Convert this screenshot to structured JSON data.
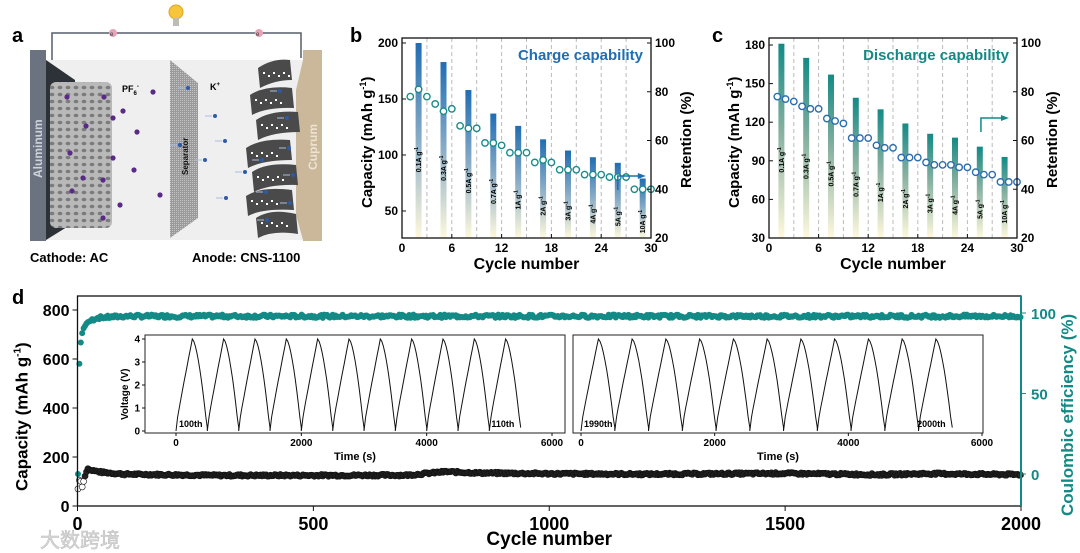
{
  "panel_a": {
    "letter": "a",
    "cathode_label": "Cathode: AC",
    "anode_label": "Anode: CNS-1100",
    "anion_label": "PF",
    "anion_sub": "6",
    "anion_sup": "-",
    "cation_label": "K",
    "cation_sup": "+",
    "separator_label": "Separator",
    "collector_left": "Aluminum",
    "collector_right": "Cuprum",
    "electron_label": "e",
    "colors": {
      "anion": "#5b2a86",
      "cation": "#2e5aa8",
      "aluminum": "#6b7380",
      "cuprum": "#cbb89a"
    }
  },
  "watermark": "大数跨境",
  "chart_data": [
    {
      "panel": "b",
      "type": "bar",
      "title": "Charge capability",
      "xlabel": "Cycle number",
      "ylabel": "Capacity (mAh g",
      "ylabel_sup": "-1",
      "ylabel_end": ")",
      "y2label": "Retention (%)",
      "xlim": [
        0,
        30
      ],
      "ylim": [
        25,
        205
      ],
      "y2lim": [
        20,
        100
      ],
      "xticks": [
        0,
        6,
        12,
        18,
        24,
        30
      ],
      "yticks": [
        50,
        100,
        150,
        200
      ],
      "y2ticks": [
        20,
        40,
        60,
        80,
        100
      ],
      "color": "#1f6db3",
      "bars": {
        "x": [
          2,
          5,
          8,
          11,
          14,
          17,
          20,
          23,
          26,
          29
        ],
        "labels": [
          "0.1A g",
          "0.3A g",
          "0.5A g",
          "0.7A g",
          "1A g",
          "2A g",
          "3A g",
          "4A g",
          "5A g",
          "10A g"
        ],
        "label_sup": "-1",
        "values": [
          200,
          183,
          158,
          137,
          126,
          114,
          104,
          98,
          93,
          79
        ]
      },
      "retention": {
        "x": [
          1,
          2,
          3,
          4,
          5,
          6,
          7,
          8,
          9,
          10,
          11,
          12,
          13,
          14,
          15,
          16,
          17,
          18,
          19,
          20,
          21,
          22,
          23,
          24,
          25,
          26,
          27,
          28,
          29,
          30
        ],
        "values": [
          78,
          81,
          78,
          75,
          72,
          73,
          66,
          65,
          65,
          59,
          59,
          58,
          55,
          55,
          55,
          51,
          52,
          51,
          48,
          48,
          48,
          46,
          46,
          46,
          45,
          45,
          45,
          40,
          40,
          40
        ],
        "color": "#1a8a8a"
      },
      "dividers": [
        3,
        6,
        9,
        12,
        15,
        18,
        21,
        24,
        27
      ]
    },
    {
      "panel": "c",
      "type": "bar",
      "title": "Discharge capability",
      "xlabel": "Cycle number",
      "ylabel": "Capacity (mAh g",
      "ylabel_sup": "-1",
      "ylabel_end": ")",
      "y2label": "Retention (%)",
      "xlim": [
        0,
        30
      ],
      "ylim": [
        30,
        185
      ],
      "y2lim": [
        20,
        100
      ],
      "xticks": [
        0,
        6,
        12,
        18,
        24,
        30
      ],
      "yticks": [
        30,
        60,
        90,
        120,
        150,
        180
      ],
      "y2ticks": [
        20,
        40,
        60,
        80,
        100
      ],
      "color": "#138a86",
      "bars": {
        "x": [
          1.5,
          4.5,
          7.5,
          10.5,
          13.5,
          16.5,
          19.5,
          22.5,
          25.5,
          28.5
        ],
        "labels": [
          "0.1A g",
          "0.3A g",
          "0.5A g",
          "0.7A g",
          "1A g",
          "2A g",
          "3A g",
          "4A g",
          "5A g",
          "10A g"
        ],
        "label_sup": "-1",
        "values": [
          181,
          170,
          157,
          139,
          130,
          119,
          111,
          108,
          101,
          93
        ]
      },
      "retention": {
        "x": [
          1,
          2,
          3,
          4,
          5,
          6,
          7,
          8,
          9,
          10,
          11,
          12,
          13,
          14,
          15,
          16,
          17,
          18,
          19,
          20,
          21,
          22,
          23,
          24,
          25,
          26,
          27,
          28,
          29,
          30
        ],
        "values": [
          78,
          77,
          76,
          74,
          73,
          73,
          69,
          68,
          67,
          61,
          61,
          61,
          58,
          57,
          57,
          53,
          53,
          53,
          51,
          50,
          50,
          50,
          49,
          49,
          47,
          46,
          46,
          43,
          43,
          43
        ],
        "color": "#2a6db0"
      },
      "dividers": [
        3,
        6,
        9,
        12,
        15,
        18,
        21,
        24,
        27
      ]
    },
    {
      "panel": "d",
      "type": "scatter",
      "xlabel": "Cycle number",
      "ylabel": "Capacity (mAh g",
      "ylabel_sup": "-1",
      "ylabel_end": ")",
      "y2label": "Coulombic efficiency (%)",
      "xlim": [
        0,
        2000
      ],
      "ylim": [
        0,
        800
      ],
      "y2lim": [
        -20,
        110
      ],
      "xticks": [
        0,
        500,
        1000,
        1500,
        2000
      ],
      "yticks": [
        0,
        200,
        400,
        600,
        800
      ],
      "y2ticks": [
        0,
        50,
        100
      ],
      "capacity": {
        "x": [
          1,
          3,
          5,
          10,
          20,
          50,
          100,
          300,
          500,
          700,
          780,
          850,
          1000,
          1200,
          1500,
          1700,
          1800,
          2000
        ],
        "values": [
          70,
          90,
          120,
          80,
          150,
          138,
          130,
          125,
          125,
          126,
          140,
          135,
          132,
          130,
          133,
          128,
          132,
          128
        ],
        "color": "#111111"
      },
      "coulombic_efficiency": {
        "x": [
          1,
          2,
          3,
          5,
          8,
          12,
          20,
          40,
          100,
          500,
          1000,
          1500,
          2000
        ],
        "values": [
          0,
          50,
          62,
          75,
          85,
          90,
          94,
          97,
          98,
          98,
          98,
          98,
          98
        ],
        "color": "#138a86"
      },
      "insets": [
        {
          "type": "line",
          "xlabel": "Time (s)",
          "ylabel": "Voltage (V)",
          "xlim": [
            0,
            6000
          ],
          "ylim": [
            0,
            4
          ],
          "xticks": [
            0,
            2000,
            4000,
            6000
          ],
          "yticks": [
            0,
            1,
            2,
            3,
            4
          ],
          "start_label": "100th",
          "end_label": "110th",
          "cycles": 11,
          "period_s": 500,
          "charge_s": 260,
          "v_min": 0,
          "v_max": 4
        },
        {
          "type": "line",
          "xlabel": "Time (s)",
          "xlim": [
            0,
            6000
          ],
          "ylim": [
            0,
            4
          ],
          "xticks": [
            0,
            2000,
            4000,
            6000
          ],
          "start_label": "1990th",
          "end_label": "2000th",
          "cycles": 11,
          "period_s": 505,
          "charge_s": 260,
          "v_min": 0,
          "v_max": 4
        }
      ]
    }
  ],
  "panel_letters": {
    "b": "b",
    "c": "c",
    "d": "d"
  }
}
